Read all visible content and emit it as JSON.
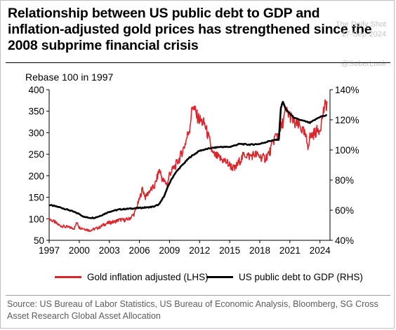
{
  "title": "Relationship between US public debt to GDP and inflation-adjusted gold prices has strengthened since the 2008 subprime financial crisis",
  "watermark": {
    "brand": "The Daily Shot",
    "date": "17-Sep-2024",
    "handle": "@SoberLook"
  },
  "source": "Source: US Bureau of Labor Statistics, US Bureau of Economic Analysis, Bloomberg, SG Cross Asset Research Global Asset Allocation",
  "chart_data": {
    "type": "line",
    "ylabel_left": "Rebase 100 in 1997",
    "x_ticks": [
      "1997",
      "2000",
      "2003",
      "2006",
      "2009",
      "2012",
      "2015",
      "2018",
      "2021",
      "2024"
    ],
    "xlim": [
      1997,
      2025
    ],
    "y_left": {
      "ticks": [
        "400",
        "350",
        "300",
        "250",
        "200",
        "150",
        "100",
        "50"
      ],
      "ylim": [
        50,
        400
      ]
    },
    "y_right": {
      "ticks": [
        "140%",
        "120%",
        "100%",
        "80%",
        "60%",
        "40%"
      ],
      "ylim": [
        40,
        140
      ]
    },
    "grid": false,
    "legend_position": "bottom",
    "series": [
      {
        "name": "Gold inflation adjusted (LHS)",
        "axis": "left",
        "color": "#d9262c",
        "x": [
          1997.0,
          1997.5,
          1998.0,
          1998.5,
          1999.0,
          1999.5,
          1999.8,
          2000.0,
          2000.5,
          2001.0,
          2001.5,
          2002.0,
          2002.5,
          2003.0,
          2003.5,
          2004.0,
          2004.5,
          2005.0,
          2005.5,
          2006.0,
          2006.3,
          2006.6,
          2007.0,
          2007.5,
          2008.0,
          2008.3,
          2008.8,
          2009.0,
          2009.5,
          2010.0,
          2010.5,
          2011.0,
          2011.3,
          2011.7,
          2012.0,
          2012.5,
          2013.0,
          2013.3,
          2013.7,
          2014.0,
          2014.5,
          2015.0,
          2015.5,
          2016.0,
          2016.5,
          2017.0,
          2017.5,
          2018.0,
          2018.5,
          2019.0,
          2019.5,
          2020.0,
          2020.6,
          2021.0,
          2021.5,
          2022.0,
          2022.5,
          2022.8,
          2023.0,
          2023.5,
          2024.0,
          2024.4,
          2024.7
        ],
        "y": [
          100,
          93,
          85,
          82,
          80,
          78,
          93,
          80,
          77,
          73,
          76,
          80,
          87,
          91,
          93,
          98,
          97,
          100,
          112,
          145,
          170,
          150,
          165,
          175,
          215,
          190,
          180,
          205,
          220,
          240,
          270,
          310,
          365,
          340,
          330,
          320,
          280,
          250,
          245,
          240,
          235,
          225,
          215,
          235,
          250,
          245,
          250,
          245,
          240,
          255,
          290,
          300,
          350,
          340,
          320,
          315,
          295,
          270,
          290,
          300,
          310,
          355,
          370
        ]
      },
      {
        "name": "US public debt to GDP (RHS)",
        "axis": "right",
        "color": "#000000",
        "x": [
          1997.0,
          1998.0,
          1999.0,
          2000.0,
          2000.5,
          2001.0,
          2001.5,
          2002.0,
          2002.5,
          2003.0,
          2004.0,
          2005.0,
          2006.0,
          2007.0,
          2007.5,
          2008.0,
          2008.5,
          2009.0,
          2009.5,
          2010.0,
          2011.0,
          2012.0,
          2013.0,
          2014.0,
          2015.0,
          2016.0,
          2017.0,
          2018.0,
          2019.0,
          2019.9,
          2020.1,
          2020.3,
          2020.6,
          2021.0,
          2021.5,
          2022.0,
          2022.5,
          2023.0,
          2023.5,
          2024.0,
          2024.7
        ],
        "y": [
          63.5,
          62,
          60,
          57.5,
          55.5,
          55,
          55,
          56,
          57.5,
          59,
          60.5,
          61,
          61.5,
          62,
          62.5,
          64,
          70,
          78,
          84,
          88,
          95,
          99.5,
          101,
          102,
          102,
          104,
          103.5,
          104,
          106,
          107,
          128,
          132,
          127,
          124,
          121,
          120,
          119,
          118,
          120,
          122,
          123
        ]
      }
    ]
  }
}
